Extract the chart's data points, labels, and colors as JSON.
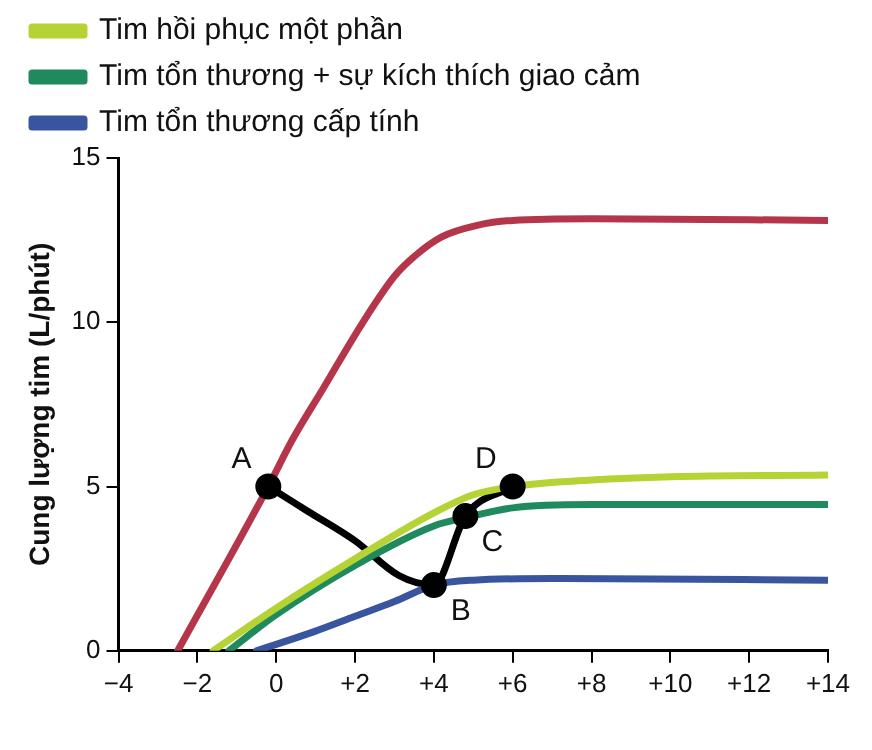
{
  "chart_data": {
    "type": "line",
    "ylabel": "Cung lượng tim (L/phút)",
    "xlim": [
      -4,
      14
    ],
    "xticks": [
      {
        "value": -4,
        "label": "−4"
      },
      {
        "value": -2,
        "label": "−2"
      },
      0,
      {
        "value": 2,
        "label": "+2"
      },
      {
        "value": 4,
        "label": "+4"
      },
      {
        "value": 6,
        "label": "+6"
      },
      {
        "value": 8,
        "label": "+8"
      },
      {
        "value": 10,
        "label": "+10"
      },
      {
        "value": 12,
        "label": "+12"
      },
      {
        "value": 14,
        "label": "+14"
      }
    ],
    "ylim": [
      0,
      15
    ],
    "yticks": [
      0,
      5,
      10,
      15
    ],
    "grid": false,
    "legend": "top left",
    "marker": "none",
    "line_style": "solid",
    "series": [
      {
        "color": "#b5364a",
        "x": [
          -2.5,
          -0.2,
          0.4,
          1.2,
          2.2,
          3,
          3.5,
          4.2,
          5.1,
          6,
          8,
          14
        ],
        "values": [
          0,
          5,
          6.4,
          8,
          10,
          11.4,
          12,
          12.6,
          12.95,
          13.1,
          13.15,
          13.1
        ]
      },
      {
        "name": "Tim hồi phục một phần",
        "color": "#b5d334",
        "x": [
          -1.6,
          0,
          2,
          4,
          5,
          6,
          8,
          10,
          14
        ],
        "values": [
          0,
          1.3,
          2.8,
          4.2,
          4.75,
          5,
          5.2,
          5.3,
          5.35
        ]
      },
      {
        "name": "Tim tổn thương + sự kích thích giao cảm",
        "color": "#1e8a5e",
        "x": [
          -1.2,
          0,
          2,
          4,
          4.8,
          6,
          8,
          14
        ],
        "values": [
          0,
          1.1,
          2.6,
          3.8,
          4.05,
          4.35,
          4.45,
          4.45
        ]
      },
      {
        "name": "Tim tổn thương cấp tính",
        "color": "#3a55a0",
        "x": [
          -0.5,
          1,
          2,
          3,
          4,
          5,
          7,
          14
        ],
        "values": [
          0,
          0.6,
          1.05,
          1.5,
          2,
          2.15,
          2.2,
          2.15
        ]
      },
      {
        "color": "#000000",
        "x": [
          -0.2,
          0.8,
          2,
          3.1,
          4,
          4.8,
          6
        ],
        "values": [
          5,
          4.25,
          3.35,
          2.3,
          2,
          4.1,
          5
        ]
      },
      {
        "type": "scatter",
        "color": "#000000",
        "marker": "circle",
        "x": [
          -0.2,
          4,
          4.8,
          6
        ],
        "values": [
          5,
          2,
          4.1,
          5
        ]
      }
    ],
    "annotations": [
      {
        "text": "A",
        "x": -0.2,
        "y": 5
      },
      {
        "text": "B",
        "x": 4,
        "y": 2
      },
      {
        "text": "C",
        "x": 4.8,
        "y": 4.1
      },
      {
        "text": "D",
        "x": 6,
        "y": 5
      }
    ]
  }
}
